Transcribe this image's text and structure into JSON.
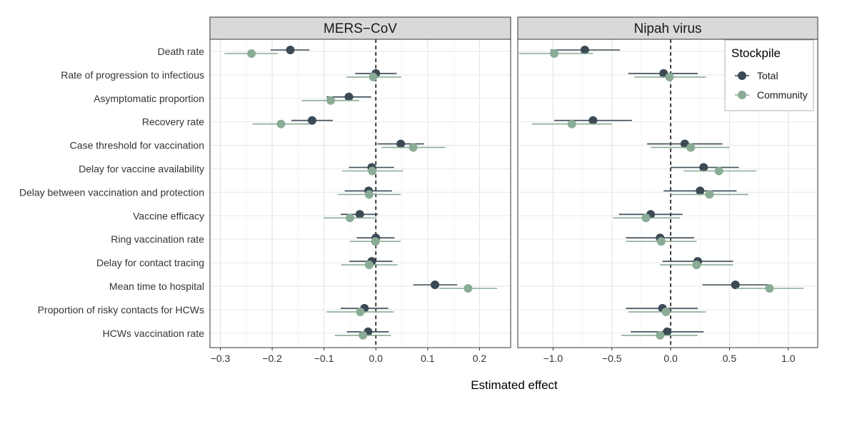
{
  "chart_data": {
    "type": "forest",
    "xlabel": "Estimated effect",
    "legend": {
      "title": "Stockpile",
      "position": "top-right",
      "entries": [
        {
          "name": "Total",
          "color": "#3b4a55"
        },
        {
          "name": "Community",
          "color": "#8aac96"
        }
      ]
    },
    "parameters": [
      "Death rate",
      "Rate of progression to infectious",
      "Asymptomatic proportion",
      "Recovery rate",
      "Case threshold for vaccination",
      "Delay for vaccine availability",
      "Delay between vaccination and protection",
      "Vaccine efficacy",
      "Ring vaccination rate",
      "Delay for contact tracing",
      "Mean time to hospital",
      "Proportion of risky contacts for HCWs",
      "HCWs vaccination rate"
    ],
    "panels": [
      {
        "title": "MERS−CoV",
        "xlim": [
          -0.32,
          0.26
        ],
        "ticks": [
          -0.3,
          -0.2,
          -0.1,
          0.0,
          0.1,
          0.2
        ],
        "tick_labels": [
          "−0.3",
          "−0.2",
          "−0.1",
          "0.0",
          "0.1",
          "0.2"
        ],
        "series": [
          {
            "name": "Total",
            "estimate": [
              -0.165,
              0.0,
              -0.052,
              -0.123,
              0.048,
              -0.008,
              -0.014,
              -0.031,
              0.0,
              -0.008,
              0.114,
              -0.022,
              -0.015
            ],
            "lower": [
              -0.203,
              -0.04,
              -0.095,
              -0.163,
              0.003,
              -0.052,
              -0.06,
              -0.068,
              -0.037,
              -0.051,
              0.072,
              -0.068,
              -0.056
            ],
            "upper": [
              -0.128,
              0.04,
              -0.009,
              -0.083,
              0.093,
              0.035,
              0.031,
              0.004,
              0.036,
              0.032,
              0.157,
              0.024,
              0.025
            ]
          },
          {
            "name": "Community",
            "estimate": [
              -0.24,
              -0.005,
              -0.087,
              -0.183,
              0.072,
              -0.007,
              -0.013,
              -0.05,
              -0.001,
              -0.013,
              0.178,
              -0.03,
              -0.025
            ],
            "lower": [
              -0.292,
              -0.057,
              -0.143,
              -0.238,
              0.011,
              -0.065,
              -0.073,
              -0.101,
              -0.05,
              -0.067,
              0.122,
              -0.095,
              -0.079
            ],
            "upper": [
              -0.189,
              0.049,
              -0.032,
              -0.128,
              0.134,
              0.053,
              0.048,
              0.001,
              0.048,
              0.042,
              0.234,
              0.035,
              0.029
            ]
          }
        ]
      },
      {
        "title": "Nipah virus",
        "xlim": [
          -1.3,
          1.25
        ],
        "ticks": [
          -1.0,
          -0.5,
          0.0,
          0.5,
          1.0
        ],
        "tick_labels": [
          "−1.0",
          "−0.5",
          "0.0",
          "0.5",
          "1.0"
        ],
        "series": [
          {
            "name": "Total",
            "estimate": [
              -0.73,
              -0.06,
              null,
              -0.66,
              0.12,
              0.28,
              0.25,
              -0.17,
              -0.09,
              0.23,
              0.55,
              -0.07,
              -0.03
            ],
            "lower": [
              -1.02,
              -0.36,
              null,
              -0.99,
              -0.2,
              0.0,
              -0.06,
              -0.44,
              -0.38,
              -0.07,
              0.27,
              -0.38,
              -0.34
            ],
            "upper": [
              -0.43,
              0.23,
              null,
              -0.33,
              0.44,
              0.58,
              0.56,
              0.1,
              0.2,
              0.53,
              0.83,
              0.23,
              0.28
            ]
          },
          {
            "name": "Community",
            "estimate": [
              -0.99,
              -0.01,
              null,
              -0.84,
              0.17,
              0.41,
              0.33,
              -0.21,
              -0.08,
              0.22,
              0.84,
              -0.04,
              -0.09
            ],
            "lower": [
              -1.29,
              -0.31,
              null,
              -1.18,
              -0.17,
              0.11,
              0.0,
              -0.49,
              -0.38,
              -0.09,
              0.56,
              -0.36,
              -0.42
            ],
            "upper": [
              -0.66,
              0.3,
              null,
              -0.5,
              0.5,
              0.73,
              0.66,
              0.08,
              0.22,
              0.53,
              1.13,
              0.3,
              0.23
            ]
          }
        ]
      }
    ]
  }
}
